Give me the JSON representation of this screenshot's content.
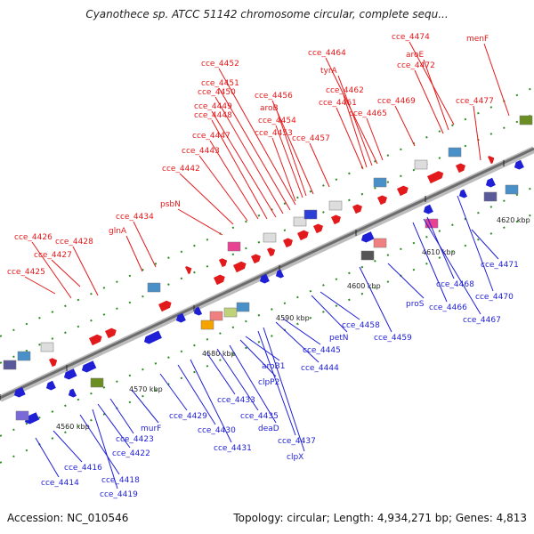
{
  "title": "Cyanothece sp. ATCC 51142 chromosome circular, complete sequ...",
  "footer": {
    "accession": "Accession: NC_010546",
    "summary": "Topology: circular; Length: 4,934,271 bp; Genes: 4,813"
  },
  "colors": {
    "forward": "#e31a1c",
    "reverse": "#1f1fd6",
    "backbone": "#888888",
    "tick": "#2e8b22"
  },
  "kbp_ticks": [
    "4560 kbp",
    "4570 kbp",
    "4580 kbp",
    "4590 kbp",
    "4600 kbp",
    "4610 kbp",
    "4620 kbp"
  ],
  "upper_labels": [
    "cce_4425",
    "cce_4427",
    "cce_4426",
    "cce_4428",
    "glnA",
    "cce_4434",
    "psbN",
    "cce_4442",
    "cce_4443",
    "cce_4447",
    "cce_4448",
    "cce_4449",
    "cce_4450",
    "cce_4451",
    "cce_4452",
    "cce_4453",
    "cce_4454",
    "aroB",
    "cce_4456",
    "cce_4457",
    "cce_4461",
    "cce_4462",
    "tyrA",
    "cce_4464",
    "cce_4465",
    "cce_4469",
    "cce_4472",
    "aroE",
    "cce_4474",
    "cce_4477",
    "menF"
  ],
  "lower_labels": [
    "cce_4414",
    "cce_4416",
    "cce_4418",
    "cce_4419",
    "cce_4422",
    "cce_4423",
    "murF",
    "cce_4429",
    "cce_4430",
    "cce_4431",
    "cce_4433",
    "cce_4435",
    "deaD",
    "clpP2",
    "aroB1",
    "cce_4437",
    "clpX",
    "cce_4444",
    "cce_4445",
    "petN",
    "cce_4458",
    "cce_4459",
    "proS",
    "cce_4466",
    "cce_4467",
    "cce_4468",
    "cce_4470",
    "cce_4471"
  ]
}
